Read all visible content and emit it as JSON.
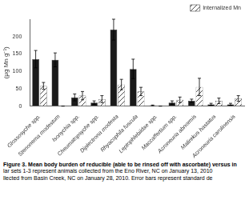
{
  "chart_data": {
    "type": "bar",
    "categories": [
      "Glossosyche spp.",
      "Stenonema modestum",
      "Isonychia spp.",
      "Cheumatopsyche spp.",
      "Diplectrona modesta",
      "Rhyacophila fuscula",
      "Leptophlebiidae spp.",
      "Maccaffertium spp.",
      "Acroneuria abnormis",
      "Malirekus hastatus",
      "Acroneuria carolinensis"
    ],
    "series": [
      {
        "color": "#1a1a1a",
        "values": [
          135,
          133,
          25,
          10,
          220,
          107,
          2,
          10,
          15,
          5,
          5
        ],
        "errors": [
          25,
          20,
          10,
          5,
          30,
          28,
          1,
          5,
          5,
          3,
          3
        ]
      },
      {
        "name": "Internalized Mn",
        "color": "#ffffff",
        "values": [
          58,
          0,
          30,
          20,
          62,
          42,
          0,
          18,
          55,
          15,
          22
        ],
        "errors": [
          10,
          0,
          12,
          10,
          15,
          12,
          0,
          8,
          25,
          8,
          8
        ]
      }
    ],
    "ylabel": "(μg Mn g⁻¹)",
    "ylim": [
      0,
      250
    ],
    "yticks": [
      0,
      50,
      100,
      150,
      200
    ],
    "grid": false,
    "legend": "upper right",
    "annotations": [
      "Figure 3.  Mean body burden of reducible (able to be rinsed off with ascorbate) versus in",
      "lar sets 1-3 represent animals collected from the Eno River, NC on January 13, 2010",
      "llected from Basin Creek, NC on January 28, 2010. Error bars represent standard de"
    ]
  }
}
